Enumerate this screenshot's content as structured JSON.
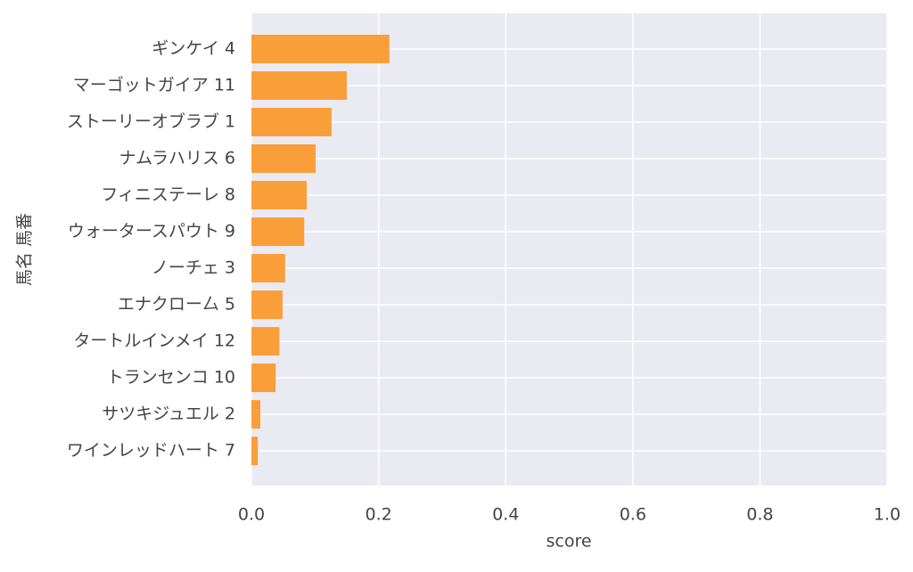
{
  "chart_data": {
    "type": "barh",
    "x_label": "score",
    "y_label": "馬名 馬番",
    "categories": [
      "ギンケイ 4",
      "マーゴットガイア 11",
      "ストーリーオブラブ 1",
      "ナムラハリス 6",
      "フィニステーレ 8",
      "ウォータースパウト 9",
      "ノーチェ 3",
      "エナクロー厶 5",
      "タートルインメイ 12",
      "トランセンコ 10",
      "サツキジュエル 2",
      "ワインレッドハート 7"
    ],
    "values": [
      0.217,
      0.15,
      0.126,
      0.101,
      0.087,
      0.083,
      0.053,
      0.049,
      0.044,
      0.038,
      0.014,
      0.01
    ],
    "color": "#fb9a2e",
    "xlim": [
      0,
      1
    ],
    "xticks": [
      {
        "value": 0,
        "label": "0.0"
      },
      0.2,
      0.4,
      0.6,
      0.8,
      {
        "value": 1,
        "label": "1.0"
      }
    ],
    "grid": true
  }
}
